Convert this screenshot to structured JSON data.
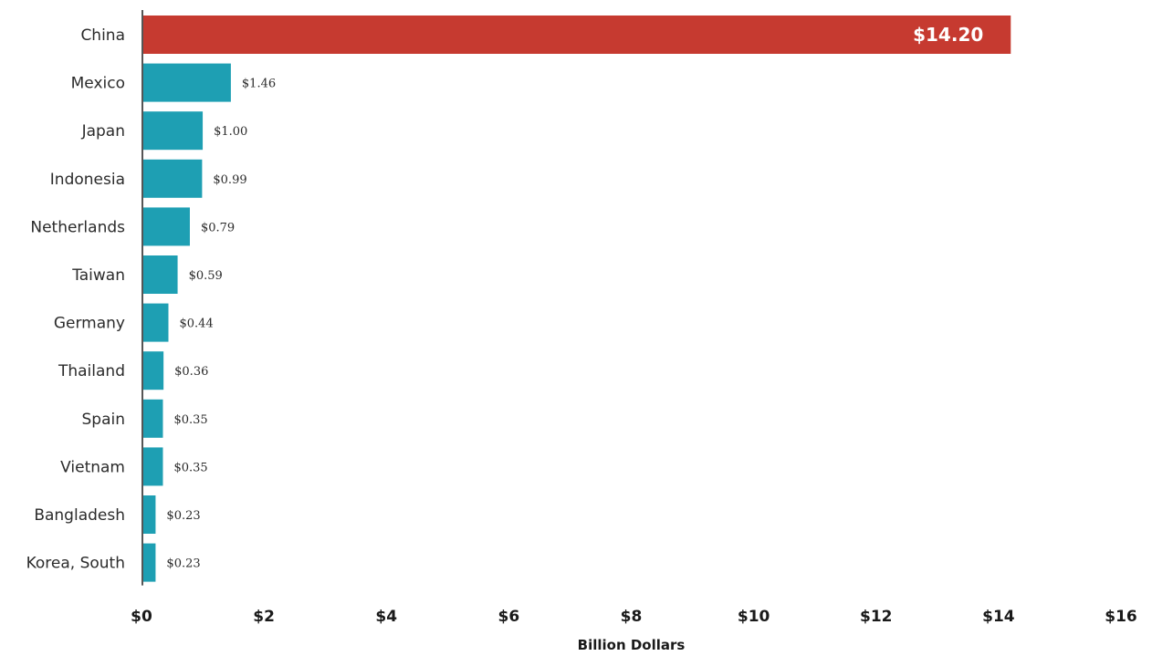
{
  "chart_data": {
    "type": "bar",
    "orientation": "horizontal",
    "categories": [
      "China",
      "Mexico",
      "Japan",
      "Indonesia",
      "Netherlands",
      "Taiwan",
      "Germany",
      "Thailand",
      "Spain",
      "Vietnam",
      "Bangladesh",
      "Korea, South"
    ],
    "values": [
      14.2,
      1.46,
      1.0,
      0.99,
      0.79,
      0.59,
      0.44,
      0.36,
      0.35,
      0.35,
      0.23,
      0.23
    ],
    "data_labels": [
      "$14.20",
      "$1.46",
      "$1.00",
      "$0.99",
      "$0.79",
      "$0.59",
      "$0.44",
      "$0.36",
      "$0.35",
      "$0.35",
      "$0.23",
      "$0.23"
    ],
    "xlabel": "Billion Dollars",
    "ylabel": "",
    "xlim": [
      0,
      16
    ],
    "xticks": [
      0,
      2,
      4,
      6,
      8,
      10,
      12,
      14,
      16
    ],
    "xtick_labels": [
      "$0",
      "$2",
      "$4",
      "$6",
      "$8",
      "$10",
      "$12",
      "$14",
      "$16"
    ],
    "grid": false,
    "highlight_index": 0,
    "colors": {
      "highlight": "#c63a30",
      "bar": "#1e9fb3",
      "axis": "#555555"
    }
  }
}
